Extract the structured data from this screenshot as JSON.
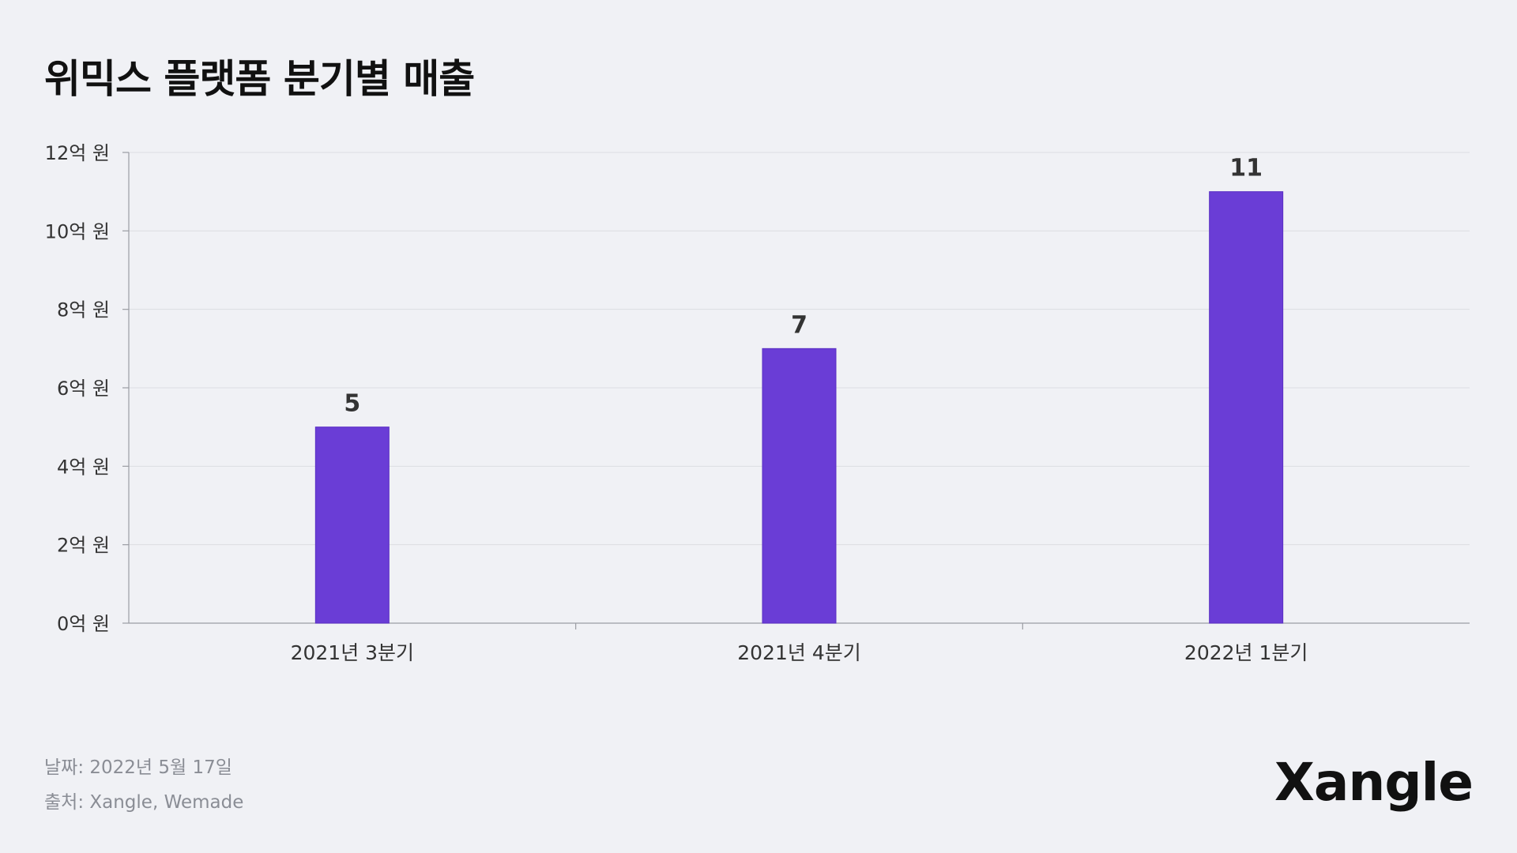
{
  "title": "위믹스 플랫폼 분기별 매출",
  "footer": {
    "date": "날짜: 2022년 5월 17일",
    "source": "출처: Xangle, Wemade"
  },
  "logo": "Xangle",
  "colors": {
    "bar": "#6a3dd6",
    "background": "#f0f1f5",
    "grid": "#dcdde2",
    "axis": "#9a9ca3"
  },
  "chart_data": {
    "type": "bar",
    "title": "위믹스 플랫폼 분기별 매출",
    "categories": [
      "2021년 3분기",
      "2021년 4분기",
      "2022년 1분기"
    ],
    "values": [
      5,
      7,
      11
    ],
    "data_labels": [
      "5",
      "7",
      "11"
    ],
    "ylim": [
      0,
      12
    ],
    "yticks": [
      0,
      2,
      4,
      6,
      8,
      10,
      12
    ],
    "ytick_labels": [
      "0억 원",
      "2억 원",
      "4억 원",
      "6억 원",
      "8억 원",
      "10억 원",
      "12억 원"
    ],
    "xlabel": "",
    "ylabel": "",
    "grid": true,
    "legend": "none"
  }
}
